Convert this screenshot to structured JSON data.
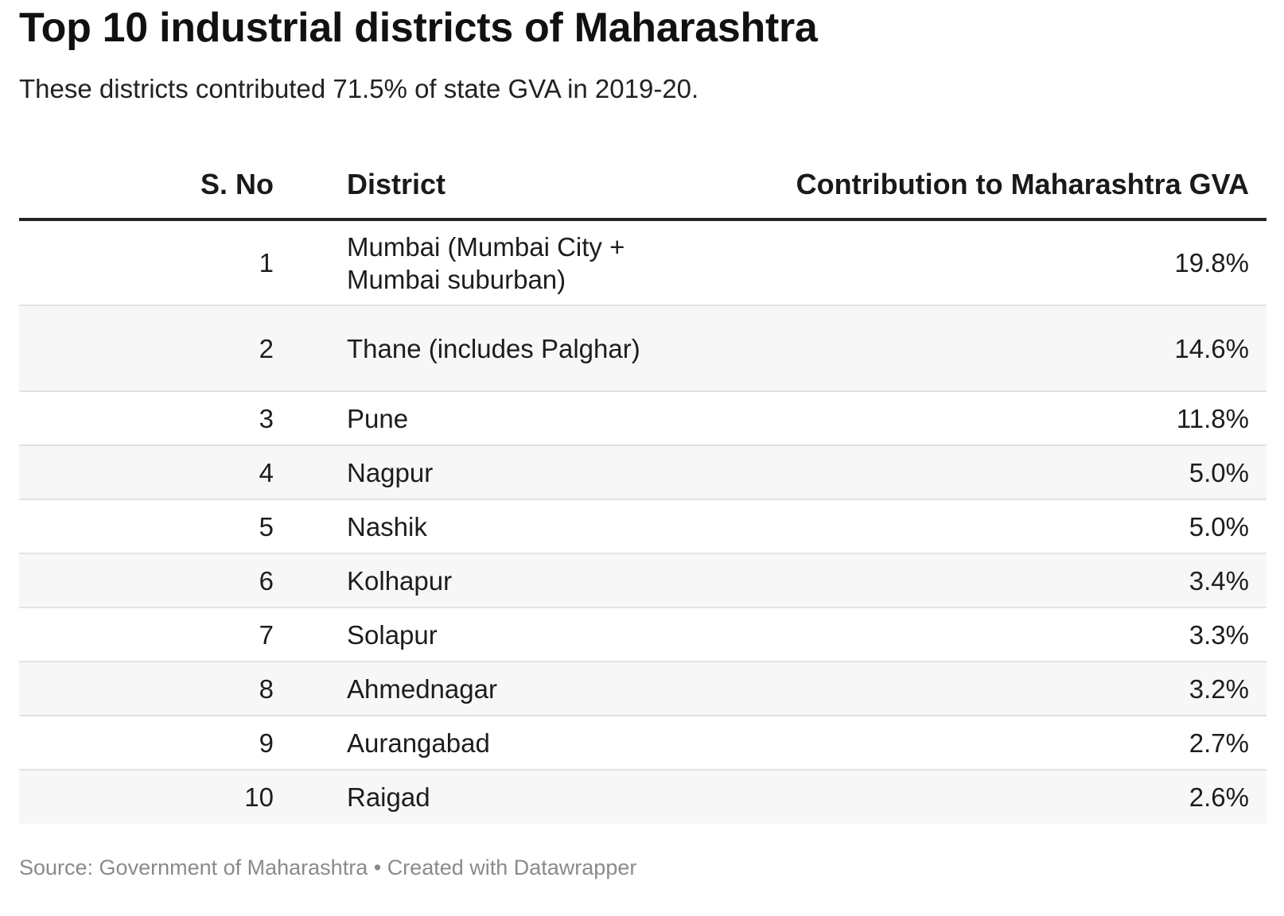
{
  "title": "Top 10 industrial districts of Maharashtra",
  "subtitle": "These districts contributed 71.5% of state GVA in 2019-20.",
  "footer": {
    "source": "Source: Government of Maharashtra",
    "separator": " • ",
    "credit": "Created with Datawrapper"
  },
  "chart_data": {
    "type": "table",
    "title": "Top 10 industrial districts of Maharashtra",
    "subtitle": "These districts contributed 71.5% of state GVA in 2019-20.",
    "columns": [
      "S. No",
      "District",
      "Contribution to Maharashtra GVA"
    ],
    "rows": [
      {
        "sno": "1",
        "district": "Mumbai (Mumbai City + Mumbai suburban)",
        "value": "19.8%"
      },
      {
        "sno": "2",
        "district": "Thane (includes Palghar)",
        "value": "14.6%"
      },
      {
        "sno": "3",
        "district": "Pune",
        "value": "11.8%"
      },
      {
        "sno": "4",
        "district": "Nagpur",
        "value": "5.0%"
      },
      {
        "sno": "5",
        "district": "Nashik",
        "value": "5.0%"
      },
      {
        "sno": "6",
        "district": "Kolhapur",
        "value": "3.4%"
      },
      {
        "sno": "7",
        "district": "Solapur",
        "value": "3.3%"
      },
      {
        "sno": "8",
        "district": "Ahmednagar",
        "value": "3.2%"
      },
      {
        "sno": "9",
        "district": "Aurangabad",
        "value": "2.7%"
      },
      {
        "sno": "10",
        "district": "Raigad",
        "value": "2.6%"
      }
    ],
    "source": "Source: Government of Maharashtra"
  }
}
